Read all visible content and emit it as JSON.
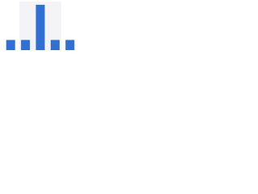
{
  "chart_data": {
    "type": "bar",
    "categories": [
      null,
      null,
      null,
      null,
      null
    ],
    "values": [
      13,
      13,
      58,
      13,
      13
    ],
    "color": "#2f6fd6",
    "ylim": [
      0,
      60
    ]
  }
}
